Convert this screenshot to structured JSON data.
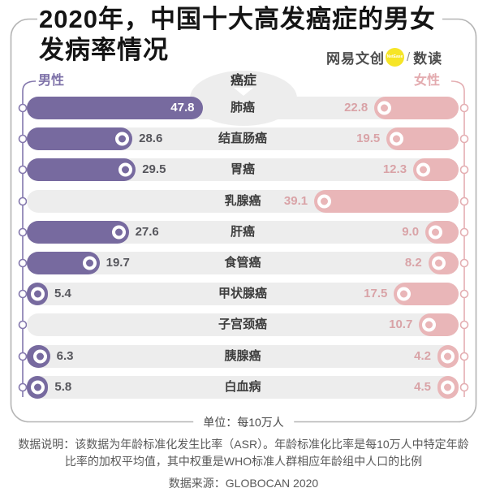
{
  "title": {
    "line1": "2020年，中国十大高发癌症的男女",
    "line2": "发病率情况",
    "full": "2020年，中国十大高发癌症的男女发病率情况"
  },
  "logo": {
    "brand": "网易文创",
    "badge": "NetEase",
    "divider": "/",
    "product": "数读"
  },
  "header": {
    "male_label": "男性",
    "center_label": "癌症",
    "female_label": "女性"
  },
  "chart_data": {
    "type": "bar",
    "variant": "diverging-horizontal",
    "title": "2020年，中国十大高发癌症的男女发病率情况",
    "unit": "每10万人",
    "categories": [
      "肺癌",
      "结直肠癌",
      "胃癌",
      "乳腺癌",
      "肝癌",
      "食管癌",
      "甲状腺癌",
      "子宫颈癌",
      "胰腺癌",
      "白血病"
    ],
    "series": [
      {
        "name": "男性",
        "color": "#776a9f",
        "values": [
          47.8,
          28.6,
          29.5,
          null,
          27.6,
          19.7,
          5.4,
          null,
          6.3,
          5.8
        ],
        "labels": [
          "47.8",
          "28.6",
          "29.5",
          null,
          "27.6",
          "19.7",
          "5.4",
          null,
          "6.3",
          "5.8"
        ]
      },
      {
        "name": "女性",
        "color": "#e9b6b8",
        "values": [
          22.8,
          19.5,
          12.3,
          39.1,
          9.0,
          8.2,
          17.5,
          10.7,
          4.2,
          4.5
        ],
        "labels": [
          "22.8",
          "19.5",
          "12.3",
          "39.1",
          "9.0",
          "8.2",
          "17.5",
          "10.7",
          "4.2",
          "4.5"
        ]
      }
    ],
    "legend_position": "top",
    "grid": false,
    "axis_ticks": "none (values labeled on bars)"
  },
  "footer": {
    "unit_text": "单位：每10万人",
    "note_line1": "数据说明：该数据为年龄标准化发生比率（ASR）。年龄标准化比率是每10万人中特定年龄",
    "note_line2": "比率的加权平均值，其中权重是WHO标准人群相应年龄组中人口的比例",
    "source": "数据来源：GLOBOCAN 2020"
  },
  "colors": {
    "male_bar": "#776a9f",
    "female_bar": "#e9b6b8",
    "male_text": "#7d71a8",
    "female_text": "#d9a3a7",
    "track": "#ededed",
    "frame": "#b5b5b5",
    "badge_yellow": "#f6e527"
  }
}
